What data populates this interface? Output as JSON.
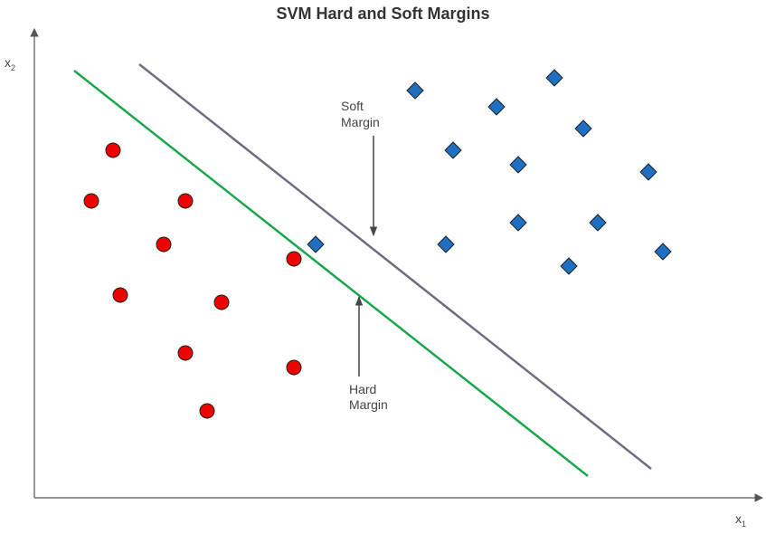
{
  "title": "SVM Hard and Soft Margins",
  "axes": {
    "y_label": "x",
    "y_sub": "2",
    "x_label": "x",
    "x_sub": "1"
  },
  "annotations": {
    "soft": {
      "line1": "Soft",
      "line2": "Margin"
    },
    "hard": {
      "line1": "Hard",
      "line2": "Margin"
    }
  },
  "colors": {
    "axis": "#555555",
    "soft_line": "#6e6e80",
    "hard_line": "#1aa64b",
    "circle_fill": "#ee0000",
    "diamond_fill": "#1e6fbf",
    "marker_stroke": "#222222",
    "arrow": "#444444"
  },
  "markers": {
    "circle": "red-circle",
    "diamond": "blue-diamond"
  }
}
